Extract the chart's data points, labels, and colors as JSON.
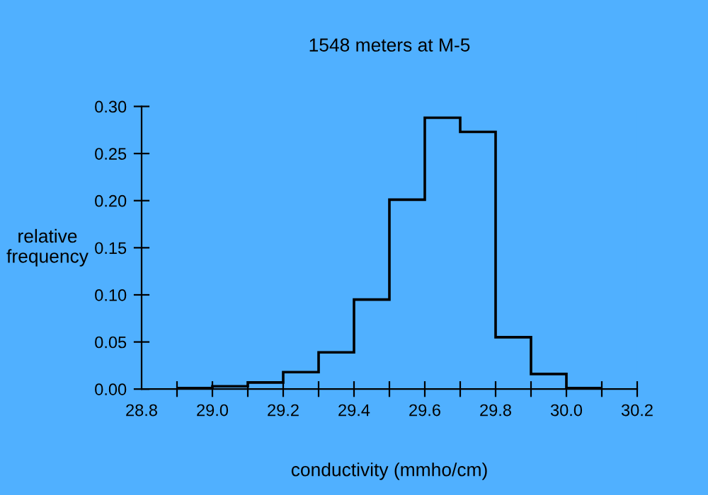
{
  "chart_data": {
    "type": "histogram",
    "title": "1548 meters at M-5",
    "xlabel": "conductivity (mmho/cm)",
    "ylabel": "relative\nfrequency",
    "bins": [
      28.9,
      29.0,
      29.1,
      29.2,
      29.3,
      29.4,
      29.5,
      29.6,
      29.7,
      29.8,
      29.9,
      30.0,
      30.1
    ],
    "values": [
      0.001,
      0.003,
      0.007,
      0.018,
      0.039,
      0.095,
      0.201,
      0.288,
      0.273,
      0.055,
      0.016,
      0.001
    ],
    "color": "#000000",
    "xlim": [
      28.8,
      30.2
    ],
    "xticks": [
      {
        "value": 28.8,
        "label": "28.8"
      },
      {
        "value": 28.9,
        "label": null
      },
      {
        "value": 29.0,
        "label": "29.0"
      },
      {
        "value": 29.1,
        "label": null
      },
      {
        "value": 29.2,
        "label": "29.2"
      },
      {
        "value": 29.3,
        "label": null
      },
      {
        "value": 29.4,
        "label": "29.4"
      },
      {
        "value": 29.5,
        "label": null
      },
      {
        "value": 29.6,
        "label": "29.6"
      },
      {
        "value": 29.7,
        "label": null
      },
      {
        "value": 29.8,
        "label": "29.8"
      },
      {
        "value": 29.9,
        "label": null
      },
      {
        "value": 30.0,
        "label": "30.0"
      },
      {
        "value": 30.1,
        "label": null
      },
      {
        "value": 30.2,
        "label": "30.2"
      }
    ],
    "ylim": [
      0,
      0.3
    ],
    "yticks": [
      {
        "value": 0,
        "label": "0.00"
      },
      {
        "value": 0.05,
        "label": "0.05"
      },
      {
        "value": 0.1,
        "label": "0.10"
      },
      {
        "value": 0.15,
        "label": "0.15"
      },
      {
        "value": 0.2,
        "label": "0.20"
      },
      {
        "value": 0.25,
        "label": "0.25"
      },
      {
        "value": 0.3,
        "label": "0.30"
      }
    ],
    "grid": false
  }
}
